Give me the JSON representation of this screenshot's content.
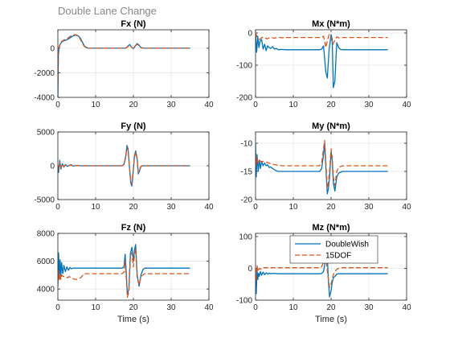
{
  "figure": {
    "title": "Double Lane Change",
    "line_colors": {
      "DoubleWish": "#0072BD",
      "15DOF": "#D95319"
    },
    "grid": true
  },
  "chart_data": [
    {
      "type": "line",
      "title": "Fx (N)",
      "xlabel": "",
      "ylabel": "",
      "xlim": [
        0,
        40
      ],
      "ylim": [
        -4000,
        1500
      ],
      "xticks": [
        "0",
        "10",
        "20",
        "30",
        "40"
      ],
      "yticks": [
        "-4000",
        "-2000",
        "0"
      ],
      "series": [
        {
          "name": "DoubleWish",
          "color": "#0072BD",
          "style": "solid",
          "x": [
            0,
            0.12,
            0.3,
            0.6,
            1,
            1.5,
            2,
            2.5,
            3,
            3.5,
            4,
            4.5,
            5,
            5.5,
            6,
            6.5,
            7,
            7.5,
            8,
            9,
            10,
            12,
            15,
            17,
            18,
            18.5,
            19,
            19.5,
            20,
            20.5,
            21,
            21.5,
            22,
            23,
            25,
            30,
            35
          ],
          "y": [
            -4000,
            -600,
            0,
            300,
            500,
            600,
            650,
            700,
            800,
            900,
            1000,
            1050,
            1050,
            980,
            800,
            500,
            200,
            60,
            10,
            0,
            0,
            0,
            0,
            0,
            10,
            150,
            300,
            100,
            -50,
            200,
            380,
            250,
            50,
            0,
            0,
            0,
            0
          ]
        },
        {
          "name": "15DOF",
          "color": "#D95319",
          "style": "dashed",
          "x": [
            0,
            0.12,
            0.3,
            0.6,
            1,
            1.5,
            2,
            2.5,
            3,
            3.5,
            4,
            4.5,
            5,
            5.5,
            6,
            6.5,
            7,
            7.5,
            8,
            9,
            10,
            12,
            15,
            17,
            18,
            18.5,
            19,
            19.5,
            20,
            20.5,
            21,
            21.5,
            22,
            23,
            25,
            30,
            35
          ],
          "y": [
            -3000,
            -300,
            100,
            350,
            550,
            650,
            700,
            800,
            900,
            1000,
            1080,
            1100,
            1080,
            950,
            700,
            400,
            150,
            40,
            0,
            0,
            0,
            0,
            0,
            0,
            10,
            120,
            250,
            80,
            -30,
            180,
            320,
            200,
            30,
            0,
            0,
            0,
            0
          ]
        }
      ]
    },
    {
      "type": "line",
      "title": "Mx (N*m)",
      "xlabel": "",
      "ylabel": "",
      "xlim": [
        0,
        40
      ],
      "ylim": [
        -200,
        10
      ],
      "xticks": [
        "0",
        "10",
        "20",
        "30",
        "40"
      ],
      "yticks": [
        "-200",
        "-100",
        "0"
      ],
      "series": [
        {
          "name": "DoubleWish",
          "color": "#0072BD",
          "style": "solid",
          "x": [
            0,
            0.3,
            0.6,
            0.9,
            1.2,
            1.6,
            2,
            2.4,
            2.8,
            3.2,
            3.6,
            4,
            4.5,
            5,
            5.5,
            6,
            7,
            8,
            10,
            15,
            17,
            17.5,
            18,
            18.3,
            18.6,
            19,
            19.5,
            20,
            20.3,
            20.6,
            21,
            21.5,
            22,
            22.5,
            23,
            25,
            30,
            35
          ],
          "y": [
            0,
            -60,
            -10,
            -45,
            -25,
            -20,
            -50,
            -35,
            -55,
            -40,
            -45,
            -48,
            -42,
            -50,
            -48,
            -52,
            -51,
            -52,
            -52,
            -52,
            -52,
            -50,
            -40,
            -80,
            -120,
            -140,
            -50,
            -5,
            -20,
            -170,
            -150,
            -30,
            -45,
            -51,
            -52,
            -52,
            -52,
            -52
          ]
        },
        {
          "name": "15DOF",
          "color": "#D95319",
          "style": "dashed",
          "x": [
            0,
            0.5,
            1,
            2,
            3,
            4,
            5,
            6,
            7,
            8,
            10,
            15,
            17,
            17.5,
            18,
            18.3,
            18.6,
            19,
            19.5,
            20,
            20.5,
            21,
            21.5,
            22,
            23,
            25,
            30,
            35
          ],
          "y": [
            0,
            -15,
            -20,
            -12,
            -18,
            -14,
            -16,
            -13,
            -15,
            -14,
            -14,
            -14,
            -14,
            -13,
            -10,
            -25,
            -45,
            -25,
            -5,
            -15,
            -35,
            -22,
            -12,
            -15,
            -14,
            -14,
            -14,
            -14
          ]
        }
      ]
    },
    {
      "type": "line",
      "title": "Fy (N)",
      "xlabel": "",
      "ylabel": "",
      "xlim": [
        0,
        40
      ],
      "ylim": [
        -5000,
        5000
      ],
      "xticks": [
        "0",
        "10",
        "20",
        "30",
        "40"
      ],
      "yticks": [
        "-5000",
        "0",
        "5000"
      ],
      "series": [
        {
          "name": "DoubleWish",
          "color": "#0072BD",
          "style": "solid",
          "x": [
            0,
            0.2,
            0.5,
            0.8,
            1.2,
            1.6,
            2,
            2.5,
            3,
            3.5,
            4,
            5,
            6,
            8,
            10,
            15,
            17,
            17.5,
            18,
            18.3,
            18.6,
            19,
            19.3,
            19.6,
            20,
            20.3,
            20.6,
            21,
            21.3,
            21.6,
            22,
            22.5,
            23,
            25,
            30,
            35
          ],
          "y": [
            0,
            -1000,
            800,
            -500,
            300,
            -200,
            200,
            -100,
            50,
            150,
            -50,
            50,
            0,
            0,
            0,
            0,
            0,
            200,
            1500,
            3000,
            2500,
            -500,
            -2500,
            -3000,
            -500,
            1500,
            2200,
            1000,
            -1200,
            -800,
            -100,
            0,
            0,
            0,
            0,
            0
          ]
        },
        {
          "name": "15DOF",
          "color": "#D95319",
          "style": "dashed",
          "x": [
            0,
            0.2,
            0.5,
            0.8,
            1.2,
            1.6,
            2,
            2.5,
            3,
            3.5,
            4,
            5,
            6,
            8,
            10,
            15,
            17,
            17.5,
            18,
            18.3,
            18.6,
            19,
            19.3,
            19.6,
            20,
            20.3,
            20.6,
            21,
            21.3,
            21.6,
            22,
            22.5,
            23,
            25,
            30,
            35
          ],
          "y": [
            0,
            -600,
            500,
            -300,
            200,
            -100,
            100,
            -50,
            30,
            80,
            -30,
            30,
            0,
            0,
            0,
            0,
            0,
            150,
            1300,
            2700,
            2200,
            -400,
            -2200,
            -2700,
            -400,
            1300,
            2000,
            900,
            -1000,
            -600,
            -80,
            0,
            0,
            0,
            0,
            0
          ]
        }
      ]
    },
    {
      "type": "line",
      "title": "My (N*m)",
      "xlabel": "",
      "ylabel": "",
      "xlim": [
        0,
        40
      ],
      "ylim": [
        -20,
        -8
      ],
      "xticks": [
        "0",
        "10",
        "20",
        "30",
        "40"
      ],
      "yticks": [
        "-20",
        "-15",
        "-10"
      ],
      "series": [
        {
          "name": "DoubleWish",
          "color": "#0072BD",
          "style": "solid",
          "x": [
            0,
            0.2,
            0.4,
            0.7,
            1,
            1.3,
            1.6,
            2,
            2.4,
            2.8,
            3.2,
            3.6,
            4,
            4.5,
            5,
            5.5,
            6,
            7,
            10,
            15,
            17,
            17.5,
            18,
            18.3,
            18.6,
            19,
            19.3,
            19.6,
            20,
            20.3,
            20.6,
            21,
            21.5,
            22,
            23,
            25,
            30,
            35
          ],
          "y": [
            -10,
            -16,
            -12,
            -15,
            -13,
            -14.5,
            -13.2,
            -14,
            -13.5,
            -14,
            -13.8,
            -14.3,
            -14.2,
            -14.5,
            -14.7,
            -14.9,
            -15,
            -15,
            -15,
            -15,
            -15,
            -14.5,
            -12,
            -10,
            -14,
            -19,
            -18,
            -16,
            -11.5,
            -13,
            -17,
            -18.5,
            -16,
            -15.3,
            -15,
            -15,
            -15,
            -15
          ]
        },
        {
          "name": "15DOF",
          "color": "#D95319",
          "style": "dashed",
          "x": [
            0,
            0.2,
            0.4,
            0.7,
            1,
            1.5,
            2,
            2.5,
            3,
            3.5,
            4,
            5,
            6,
            7,
            8,
            10,
            15,
            17,
            17.5,
            18,
            18.3,
            18.6,
            19,
            19.3,
            19.6,
            20,
            20.3,
            20.6,
            21,
            21.5,
            22,
            23,
            25,
            30,
            35
          ],
          "y": [
            -12,
            -14,
            -12.5,
            -13.5,
            -13,
            -13.3,
            -13.2,
            -13.4,
            -13.4,
            -13.5,
            -13.6,
            -13.8,
            -13.9,
            -14,
            -14,
            -14,
            -14,
            -14,
            -13.5,
            -11,
            -9.5,
            -13,
            -18,
            -17,
            -15,
            -11,
            -12.5,
            -16,
            -17.5,
            -15,
            -14.3,
            -14,
            -14,
            -14,
            -14
          ]
        }
      ]
    },
    {
      "type": "line",
      "title": "Fz (N)",
      "xlabel": "Time (s)",
      "ylabel": "",
      "xlim": [
        0,
        40
      ],
      "ylim": [
        3200,
        8000
      ],
      "xticks": [
        "0",
        "10",
        "20",
        "30",
        "40"
      ],
      "yticks": [
        "4000",
        "6000",
        "8000"
      ],
      "series": [
        {
          "name": "DoubleWish",
          "color": "#0072BD",
          "style": "solid",
          "x": [
            0,
            0.2,
            0.4,
            0.6,
            0.8,
            1,
            1.3,
            1.6,
            2,
            2.4,
            2.8,
            3.2,
            3.6,
            4,
            4.5,
            5,
            6,
            7,
            10,
            15,
            17,
            17.5,
            17.8,
            18.1,
            18.4,
            18.8,
            19.2,
            19.6,
            20,
            20.3,
            20.6,
            21,
            21.5,
            22,
            22.5,
            23,
            25,
            30,
            35
          ],
          "y": [
            4200,
            6600,
            4700,
            6100,
            5000,
            5900,
            5100,
            5700,
            5250,
            5600,
            5350,
            5550,
            5450,
            5500,
            5500,
            5500,
            5500,
            5500,
            5500,
            5500,
            5500,
            5600,
            6500,
            5200,
            3600,
            4000,
            6500,
            7000,
            6000,
            6800,
            7200,
            5000,
            4200,
            5000,
            5400,
            5500,
            5500,
            5500,
            5500
          ]
        },
        {
          "name": "15DOF",
          "color": "#D95319",
          "style": "dashed",
          "x": [
            0,
            0.2,
            0.4,
            0.6,
            0.8,
            1,
            1.5,
            2,
            2.5,
            3,
            3.5,
            4,
            4.5,
            5,
            6,
            7,
            10,
            15,
            17,
            17.5,
            17.8,
            18.1,
            18.4,
            18.8,
            19.2,
            19.6,
            20,
            20.3,
            20.6,
            21,
            21.5,
            22,
            22.5,
            23,
            25,
            30,
            35
          ],
          "y": [
            4500,
            5300,
            4600,
            5100,
            4700,
            5000,
            4900,
            4900,
            4800,
            4900,
            4800,
            4750,
            4700,
            4700,
            4800,
            5100,
            5100,
            5100,
            5100,
            5200,
            6000,
            4800,
            3400,
            3800,
            6200,
            6600,
            5600,
            6500,
            6900,
            4800,
            4300,
            4900,
            5000,
            5100,
            5100,
            5100,
            5100
          ]
        }
      ]
    },
    {
      "type": "line",
      "title": "Mz (N*m)",
      "xlabel": "Time (s)",
      "ylabel": "",
      "xlim": [
        0,
        40
      ],
      "ylim": [
        -100,
        110
      ],
      "xticks": [
        "0",
        "10",
        "20",
        "30",
        "40"
      ],
      "yticks": [
        "-100",
        "0",
        "100"
      ],
      "legend": {
        "location": "top-right",
        "entries": [
          "DoubleWish",
          "15DOF"
        ]
      },
      "series": [
        {
          "name": "DoubleWish",
          "color": "#0072BD",
          "style": "solid",
          "x": [
            0,
            0.2,
            0.4,
            0.6,
            0.8,
            1,
            1.3,
            1.6,
            2,
            2.4,
            2.8,
            3.2,
            3.6,
            4,
            4.5,
            5,
            6,
            7,
            10,
            15,
            17,
            17.5,
            18,
            18.3,
            18.6,
            19,
            19.3,
            19.6,
            20,
            20.3,
            20.6,
            21,
            21.5,
            22,
            23,
            25,
            30,
            35
          ],
          "y": [
            0,
            -80,
            -5,
            -35,
            -15,
            -25,
            -10,
            -22,
            -12,
            -20,
            -14,
            -18,
            -15,
            -17,
            -16,
            -16,
            -17,
            -17,
            -17,
            -17,
            -17,
            -16,
            -10,
            10,
            50,
            40,
            -40,
            -90,
            -70,
            -45,
            -30,
            -25,
            -18,
            -17,
            -17,
            -17,
            -17,
            -17
          ]
        },
        {
          "name": "15DOF",
          "color": "#D95319",
          "style": "dashed",
          "x": [
            0,
            0.2,
            0.4,
            0.6,
            1,
            1.5,
            2,
            3,
            4,
            5,
            6,
            8,
            10,
            15,
            17,
            17.5,
            18,
            18.3,
            18.6,
            19,
            19.3,
            19.6,
            20,
            20.3,
            20.6,
            21,
            21.5,
            22,
            23,
            25,
            30,
            35
          ],
          "y": [
            0,
            -40,
            10,
            -10,
            0,
            -3,
            2,
            2,
            2,
            2,
            2,
            2,
            2,
            2,
            2,
            5,
            20,
            45,
            35,
            -5,
            -35,
            -60,
            -50,
            -35,
            -20,
            -10,
            -3,
            0,
            2,
            2,
            2,
            2
          ]
        }
      ]
    }
  ]
}
